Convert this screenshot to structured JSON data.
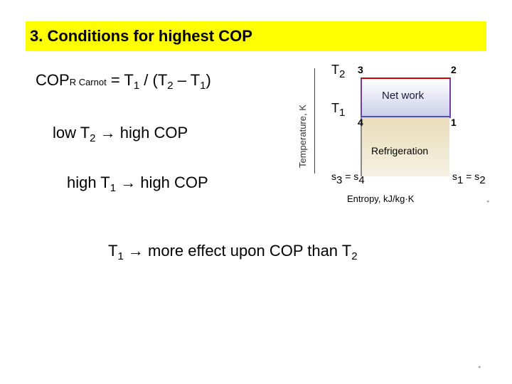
{
  "title": "3. Conditions for highest COP",
  "formula": {
    "cop": "COP",
    "cop_sub": "R Carnot",
    "eq": " = T",
    "t1_sub": "1",
    "div": " / (T",
    "t2_sub": "2",
    "minus": " – T",
    "t1b_sub": "1",
    "close": ")"
  },
  "line2": {
    "pre": "low T",
    "sub": "2",
    "post": " → high COP"
  },
  "line3": {
    "pre": "high T",
    "sub": "1",
    "post": " → high COP"
  },
  "diagram": {
    "ylabel": "Temperature, K",
    "xlabel": "Entropy, kJ/kg·K",
    "t2": "T",
    "t2_sub": "2",
    "t1": "T",
    "t1_sub": "1",
    "p3": "3",
    "p2": "2",
    "p4": "4",
    "p1": "1",
    "net_work": "Net work",
    "refrigeration": "Refrigeration",
    "s3": "s",
    "s3_sub": "3",
    "s3_eq": " = s",
    "s4_sub": "4",
    "s1": "s",
    "s1_sub": "1",
    "s1_eq": " = s",
    "s2_sub": "2"
  },
  "bottom": {
    "pre": "T",
    "sub1": "1",
    "mid": " → more effect upon COP than T",
    "sub2": "2"
  },
  "colors": {
    "title_bg": "#ffff00",
    "top_line": "#cc0000",
    "side_line": "#6d3fa8",
    "bottom_line": "#4a56b0"
  }
}
